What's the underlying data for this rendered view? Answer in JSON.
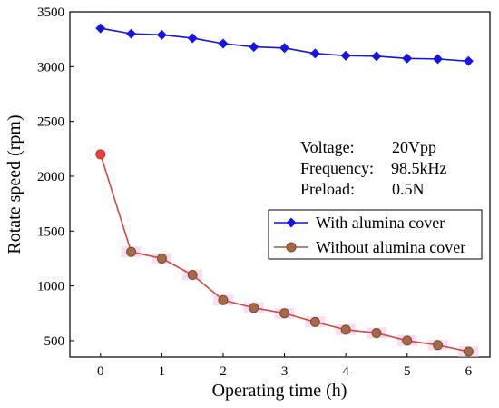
{
  "chart_data": {
    "type": "line",
    "title": "",
    "xlabel": "Operating time (h)",
    "ylabel": "Rotate speed (rpm)",
    "xlim": [
      -0.5,
      6.35
    ],
    "ylim": [
      350,
      3500
    ],
    "xticks": [
      0,
      1,
      2,
      3,
      4,
      5,
      6
    ],
    "yticks": [
      500,
      1000,
      1500,
      2000,
      2500,
      3000,
      3500
    ],
    "grid": false,
    "legend_position": "center-right",
    "series": [
      {
        "name": "With alumina cover",
        "color": "#1414e6",
        "marker": "diamond",
        "x": [
          0,
          0.5,
          1,
          1.5,
          2,
          2.5,
          3,
          3.5,
          4,
          4.5,
          5,
          5.5,
          6
        ],
        "y": [
          3350,
          3300,
          3290,
          3260,
          3210,
          3180,
          3170,
          3120,
          3100,
          3095,
          3075,
          3070,
          3050
        ]
      },
      {
        "name": "Without alumina cover",
        "color": "#9b5c3c",
        "marker": "circle",
        "x": [
          0,
          0.5,
          1,
          1.5,
          2,
          2.5,
          3,
          3.5,
          4,
          4.5,
          5,
          5.5,
          6
        ],
        "y": [
          2200,
          1310,
          1250,
          1100,
          870,
          800,
          750,
          670,
          600,
          570,
          500,
          460,
          400
        ]
      }
    ],
    "annotations": {
      "voltage_label": "Voltage:",
      "voltage_value": "20Vpp",
      "frequency_label": "Frequency:",
      "frequency_value": "98.5kHz",
      "preload_label": "Preload:",
      "preload_value": "0.5N"
    },
    "first_point_color": "#e8403a"
  }
}
